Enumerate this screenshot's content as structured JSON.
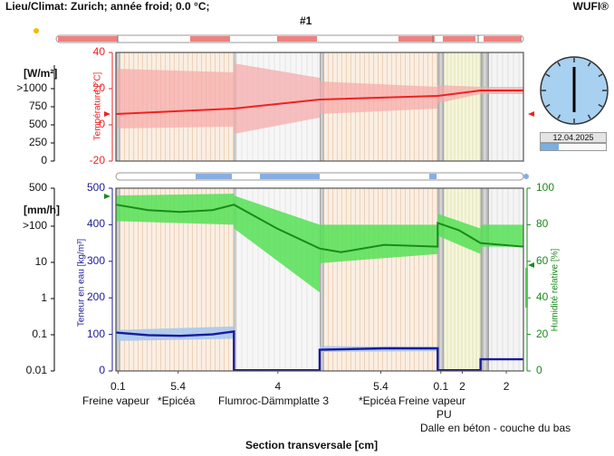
{
  "header": {
    "location": "Lieu/Climat: Zurich; année froid; 0.0 °C;",
    "app": "WUFI®",
    "case": "#1"
  },
  "top_panel": {
    "flux_unit": "[W/m²]",
    "flux_ticks": [
      ">1000",
      "750",
      "500",
      "250",
      "0"
    ],
    "temp_label": "Température [°C]",
    "temp_ticks": [
      "40",
      "20",
      "0",
      "-20"
    ]
  },
  "bottom_panel": {
    "flow_unit": "[mm/h]",
    "flow_ticks": [
      "500",
      ">100",
      "10",
      "1",
      "0.1",
      "0.01"
    ],
    "water_label": "Teneur en eau [kg/m³]",
    "water_ticks": [
      "500",
      "400",
      "300",
      "200",
      "100",
      "0"
    ],
    "rh_label": "Humidité relative [%]",
    "rh_ticks": [
      "100",
      "80",
      "60",
      "40",
      "20",
      "0"
    ]
  },
  "clock": {
    "date": "12.04.2025",
    "progress": 0.28
  },
  "layers": {
    "thicknesses": [
      "0.1",
      "5.4",
      "4",
      "5.4",
      "0.1",
      "2",
      "2"
    ],
    "names_row1": [
      "Freine vapeur",
      "*Epicéa",
      "Flumroc-Dämmplatte 3",
      "*Epicéa",
      "Freine vapeur"
    ],
    "names_row2": "PU",
    "names_row3": "Dalle en béton - couche du bas"
  },
  "xaxis": {
    "label": "Section transversale [cm]"
  },
  "colors": {
    "temperature": "#ee2222",
    "rh": "#1a8a1a",
    "water": "#1a1a9a",
    "band_red": "#f7a8a8",
    "band_green": "#55e055",
    "band_blue": "#a8c8ee"
  },
  "chart_data": {
    "type": "line",
    "title": "#1",
    "xlabel": "Section transversale [cm]",
    "temperature_ylim": [
      -20,
      40
    ],
    "rh_ylim": [
      0,
      100
    ],
    "water_ylim": [
      0,
      500
    ],
    "series": [
      {
        "name": "Température [°C]",
        "x": [
          0,
          5.5,
          5.5,
          9.5,
          9.5,
          15.0,
          15.0,
          17.0,
          19.0
        ],
        "values": [
          6,
          9,
          9,
          14,
          14,
          16,
          16,
          19,
          19
        ]
      },
      {
        "name": "Humidité relative [%]",
        "x": [
          0,
          1.5,
          3.0,
          4.5,
          5.5,
          5.5,
          7.5,
          9.5,
          9.5,
          10.5,
          12.5,
          15.0,
          15.0,
          16.0,
          17.0,
          17.0,
          19.0
        ],
        "values": [
          91,
          88,
          87,
          88,
          91,
          91,
          78,
          67,
          67,
          65,
          69,
          68,
          81,
          77,
          70,
          70,
          68
        ]
      },
      {
        "name": "Teneur en eau [kg/m³]",
        "x": [
          0,
          1.5,
          3.0,
          4.5,
          5.5,
          5.5,
          9.5,
          9.5,
          12.5,
          15.0,
          15.0,
          17.0,
          17.0,
          19.0
        ],
        "values": [
          105,
          98,
          96,
          100,
          108,
          2,
          2,
          58,
          62,
          62,
          2,
          2,
          32,
          32
        ]
      }
    ]
  }
}
